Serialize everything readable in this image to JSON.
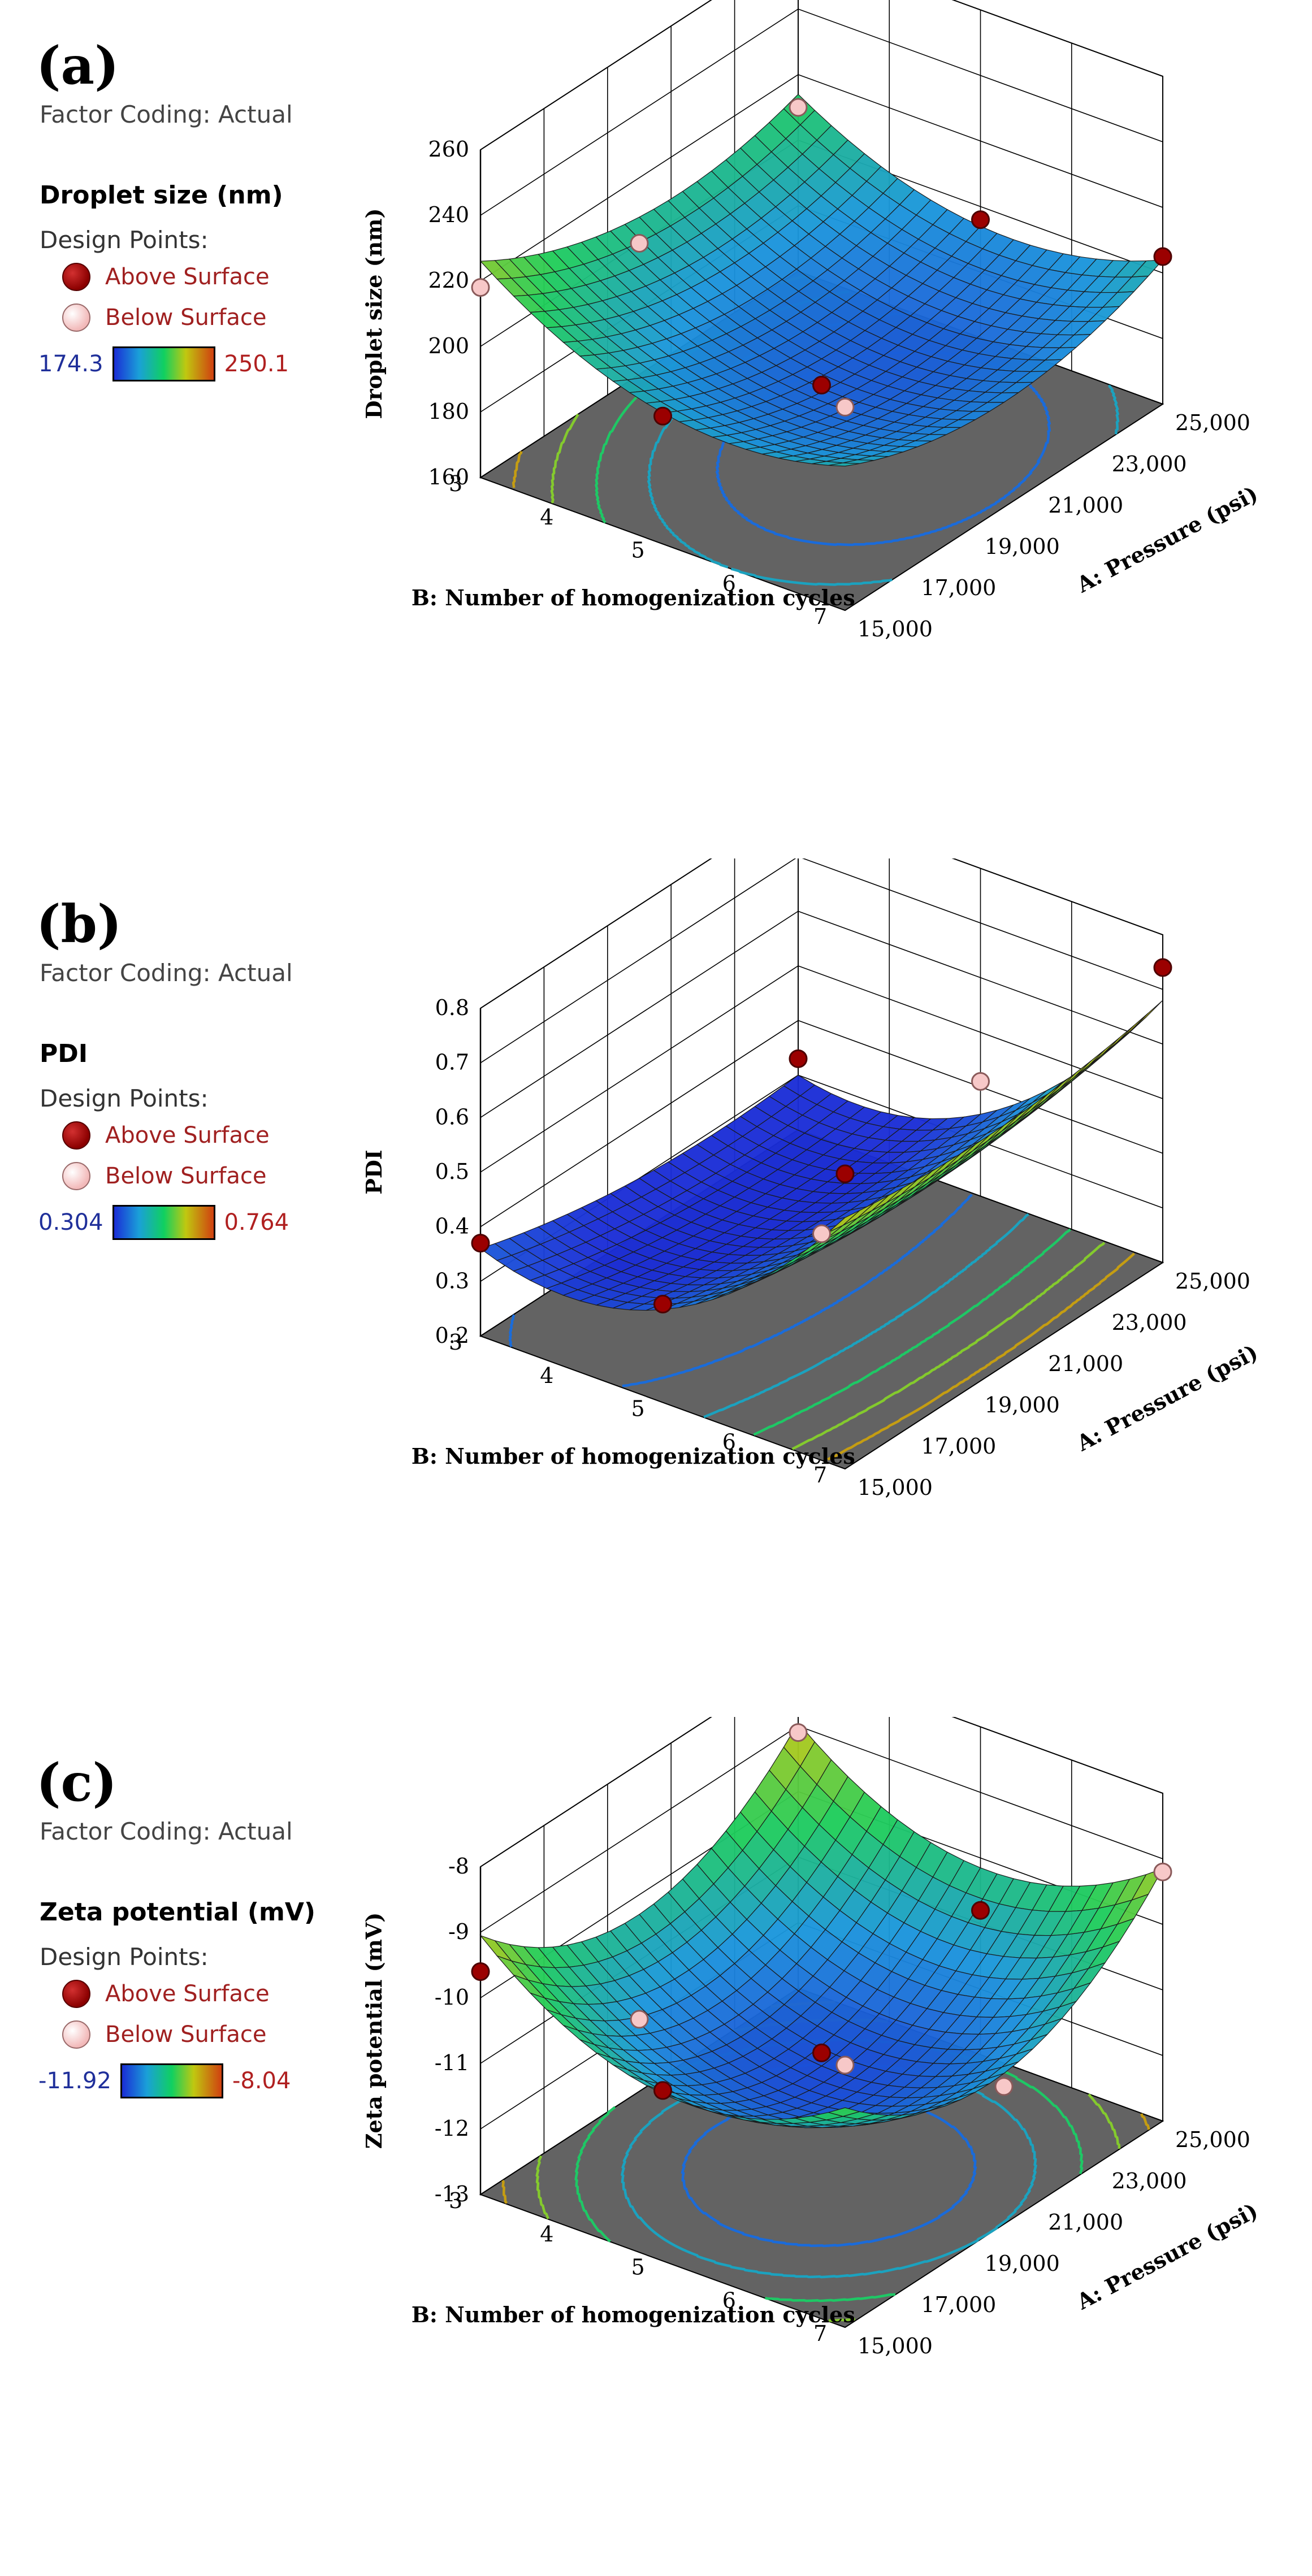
{
  "chart_data": [
    {
      "type": "surface3d",
      "panel_label": "(a)",
      "factor_coding": "Factor Coding: Actual",
      "response_title": "Droplet size (nm)",
      "design_points_label": "Design Points:",
      "legend": {
        "above": "Above Surface",
        "below": "Below Surface"
      },
      "colorbar": {
        "min_label": "174.3",
        "max_label": "250.1",
        "min": 174.3,
        "max": 250.1
      },
      "xlabel": "A: Pressure (psi)",
      "ylabel": "B: Number of homogenization cycles",
      "zlabel": "Droplet size (nm)",
      "x_ticks": [
        "15,000",
        "17,000",
        "19,000",
        "21,000",
        "23,000",
        "25,000"
      ],
      "y_ticks": [
        "3",
        "4",
        "5",
        "6",
        "7"
      ],
      "z_ticks": [
        "160",
        "180",
        "200",
        "220",
        "240",
        "260"
      ],
      "x_range": [
        15000,
        25000
      ],
      "y_range": [
        3,
        7
      ],
      "z_range": [
        160,
        260
      ],
      "model": {
        "center": 185,
        "slope_a": -3,
        "slope_b": -8,
        "curv_a": 12,
        "curv_b": 15,
        "inter": 3
      },
      "design_points": [
        {
          "A": 15000,
          "B": 3,
          "z": 218,
          "side": "below"
        },
        {
          "A": 15000,
          "B": 7,
          "z": 222,
          "side": "below"
        },
        {
          "A": 25000,
          "B": 3,
          "z": 210,
          "side": "below"
        },
        {
          "A": 25000,
          "B": 7,
          "z": 205,
          "side": "above"
        },
        {
          "A": 20000,
          "B": 5,
          "z": 177,
          "side": "above"
        },
        {
          "A": 15000,
          "B": 5,
          "z": 199,
          "side": "above"
        },
        {
          "A": 25000,
          "B": 5,
          "z": 196,
          "side": "above"
        },
        {
          "A": 20000,
          "B": 3,
          "z": 200,
          "side": "below"
        }
      ]
    },
    {
      "type": "surface3d",
      "panel_label": "(b)",
      "factor_coding": "Factor Coding: Actual",
      "response_title": "PDI",
      "design_points_label": "Design Points:",
      "legend": {
        "above": "Above Surface",
        "below": "Below Surface"
      },
      "colorbar": {
        "min_label": "0.304",
        "max_label": "0.764",
        "min": 0.304,
        "max": 0.764
      },
      "xlabel": "A: Pressure (psi)",
      "ylabel": "B: Number of homogenization cycles",
      "zlabel": "PDI",
      "x_ticks": [
        "15,000",
        "17,000",
        "19,000",
        "21,000",
        "23,000",
        "25,000"
      ],
      "y_ticks": [
        "3",
        "4",
        "5",
        "6",
        "7"
      ],
      "z_ticks": [
        "0.2",
        "0.3",
        "0.4",
        "0.5",
        "0.6",
        "0.7",
        "0.8"
      ],
      "x_range": [
        15000,
        25000
      ],
      "y_range": [
        3,
        7
      ],
      "z_range": [
        0.2,
        0.8
      ],
      "model": {
        "center": 0.33,
        "slope_a": -0.01,
        "slope_b": 0.17,
        "curv_a": 0.03,
        "curv_b": 0.14,
        "inter": 0.02
      },
      "design_points": [
        {
          "A": 15000,
          "B": 7,
          "z": 0.74,
          "side": "above"
        },
        {
          "A": 25000,
          "B": 7,
          "z": 0.74,
          "side": "above"
        },
        {
          "A": 15000,
          "B": 3,
          "z": 0.37,
          "side": "above"
        },
        {
          "A": 25000,
          "B": 3,
          "z": 0.33,
          "side": "above"
        },
        {
          "A": 20000,
          "B": 5,
          "z": 0.32,
          "side": "below"
        },
        {
          "A": 15000,
          "B": 5,
          "z": 0.38,
          "side": "above"
        },
        {
          "A": 25000,
          "B": 5,
          "z": 0.41,
          "side": "below"
        }
      ]
    },
    {
      "type": "surface3d",
      "panel_label": "(c)",
      "factor_coding": "Factor Coding: Actual",
      "response_title": "Zeta potential (mV)",
      "design_points_label": "Design Points:",
      "legend": {
        "above": "Above Surface",
        "below": "Below Surface"
      },
      "colorbar": {
        "min_label": "-11.92",
        "max_label": "-8.04",
        "min": -11.92,
        "max": -8.04
      },
      "xlabel": "A: Pressure (psi)",
      "ylabel": "B: Number of homogenization cycles",
      "zlabel": "Zeta potential (mV)",
      "x_ticks": [
        "15,000",
        "17,000",
        "19,000",
        "21,000",
        "23,000",
        "25,000"
      ],
      "y_ticks": [
        "3",
        "4",
        "5",
        "6",
        "7"
      ],
      "z_ticks": [
        "-13",
        "-12",
        "-11",
        "-10",
        "-9",
        "-8"
      ],
      "x_range": [
        15000,
        25000
      ],
      "y_range": [
        3,
        7
      ],
      "z_range": [
        -13,
        -8
      ],
      "model": {
        "center": -11.6,
        "slope_a": 0.15,
        "slope_b": -0.2,
        "curv_a": 1.3,
        "curv_b": 1.1,
        "inter": 0.1
      },
      "design_points": [
        {
          "A": 15000,
          "B": 7,
          "z": -9.0,
          "side": "below"
        },
        {
          "A": 25000,
          "B": 7,
          "z": -9.2,
          "side": "below"
        },
        {
          "A": 15000,
          "B": 3,
          "z": -9.6,
          "side": "above"
        },
        {
          "A": 25000,
          "B": 3,
          "z": -9.1,
          "side": "below"
        },
        {
          "A": 20000,
          "B": 5,
          "z": -11.4,
          "side": "above"
        },
        {
          "A": 15000,
          "B": 5,
          "z": -10.4,
          "side": "above"
        },
        {
          "A": 25000,
          "B": 5,
          "z": -10.8,
          "side": "above"
        },
        {
          "A": 20000,
          "B": 3,
          "z": -11.9,
          "side": "below"
        },
        {
          "A": 20000,
          "B": 7,
          "z": -10.9,
          "side": "below"
        }
      ]
    }
  ],
  "colors": {
    "floor": "#636363",
    "grid": "#000000",
    "mesh": "#1a1a1a",
    "above_point": "#9b0000",
    "below_point": "#f7c8c8"
  }
}
